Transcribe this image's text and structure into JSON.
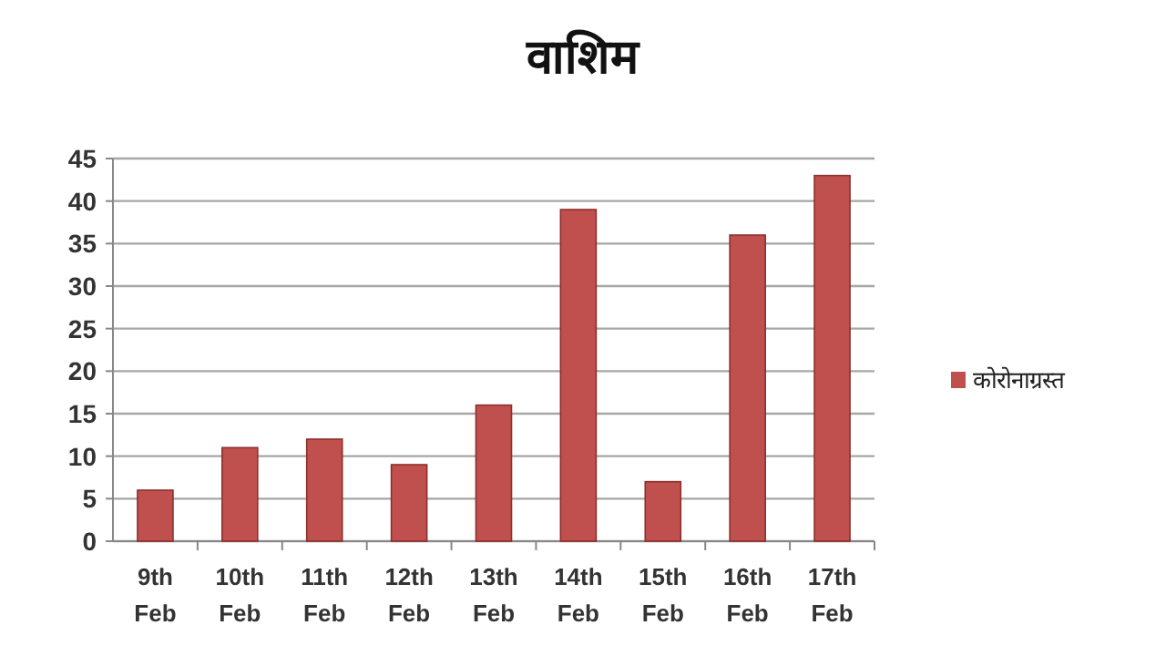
{
  "chart_data": {
    "type": "bar",
    "title": "वाशिम",
    "categories": [
      "9th Feb",
      "10th Feb",
      "11th Feb",
      "12th Feb",
      "13th Feb",
      "14th Feb",
      "15th Feb",
      "16th Feb",
      "17th Feb"
    ],
    "series": [
      {
        "name": "कोरोनाग्रस्त",
        "color": "#c0504d",
        "values": [
          6,
          11,
          12,
          9,
          16,
          39,
          7,
          36,
          43
        ]
      }
    ],
    "ylim": [
      0,
      45
    ],
    "yticks": [
      0,
      5,
      10,
      15,
      20,
      25,
      30,
      35,
      40,
      45
    ],
    "grid": "y",
    "legend": "right"
  }
}
